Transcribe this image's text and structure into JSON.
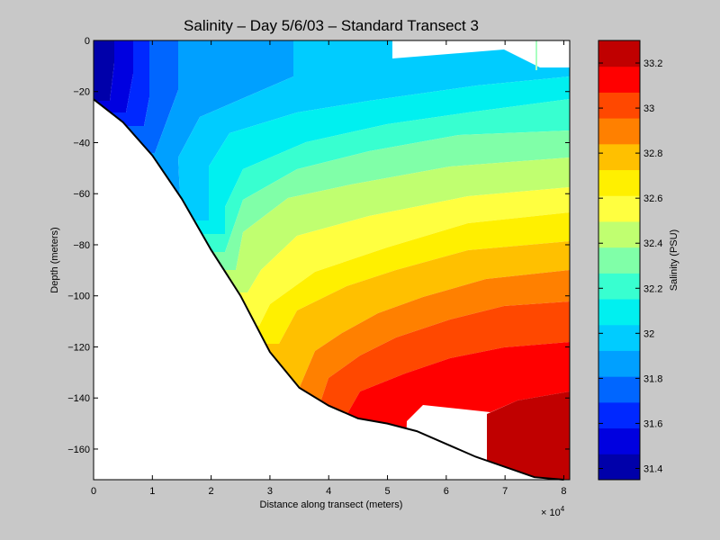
{
  "chart_data": {
    "type": "contour",
    "title": "Salinity – Day 5/6/03 – Standard Transect 3",
    "xlabel": "Distance along transect (meters)",
    "ylabel": "Depth (meters)",
    "x_exponent": "× 10",
    "x_exponent_power": "4",
    "xlim": [
      0,
      81000
    ],
    "ylim": [
      -172,
      0
    ],
    "x_ticks": [
      "0",
      "1",
      "2",
      "3",
      "4",
      "5",
      "6",
      "7",
      "8"
    ],
    "y_ticks": [
      "0",
      "−20",
      "−40",
      "−60",
      "−80",
      "−100",
      "−120",
      "−140",
      "−160"
    ],
    "colorbar": {
      "label": "Salinity (PSU)",
      "range": [
        31.35,
        33.3
      ],
      "ticks": [
        "31.4",
        "31.6",
        "31.8",
        "32",
        "32.2",
        "32.4",
        "32.6",
        "32.8",
        "33",
        "33.2"
      ],
      "colors": [
        "#0000aa",
        "#0000e0",
        "#0028ff",
        "#0066ff",
        "#00a0ff",
        "#00ccff",
        "#00f0f0",
        "#38ffd0",
        "#80ffa8",
        "#c0ff70",
        "#ffff40",
        "#fff000",
        "#ffc000",
        "#ff8000",
        "#ff4800",
        "#ff0000",
        "#c00000"
      ]
    },
    "seafloor_profile": {
      "distance_m": [
        0,
        5000,
        10000,
        15000,
        20000,
        25000,
        30000,
        35000,
        40000,
        45000,
        50000,
        55000,
        60000,
        65000,
        70000,
        75000,
        80000
      ],
      "depth_m": [
        -23,
        -32,
        -45,
        -62,
        -82,
        -100,
        -122,
        -136,
        -143,
        -148,
        -150,
        -153,
        -158,
        -163,
        -167,
        -171,
        -172
      ]
    }
  }
}
